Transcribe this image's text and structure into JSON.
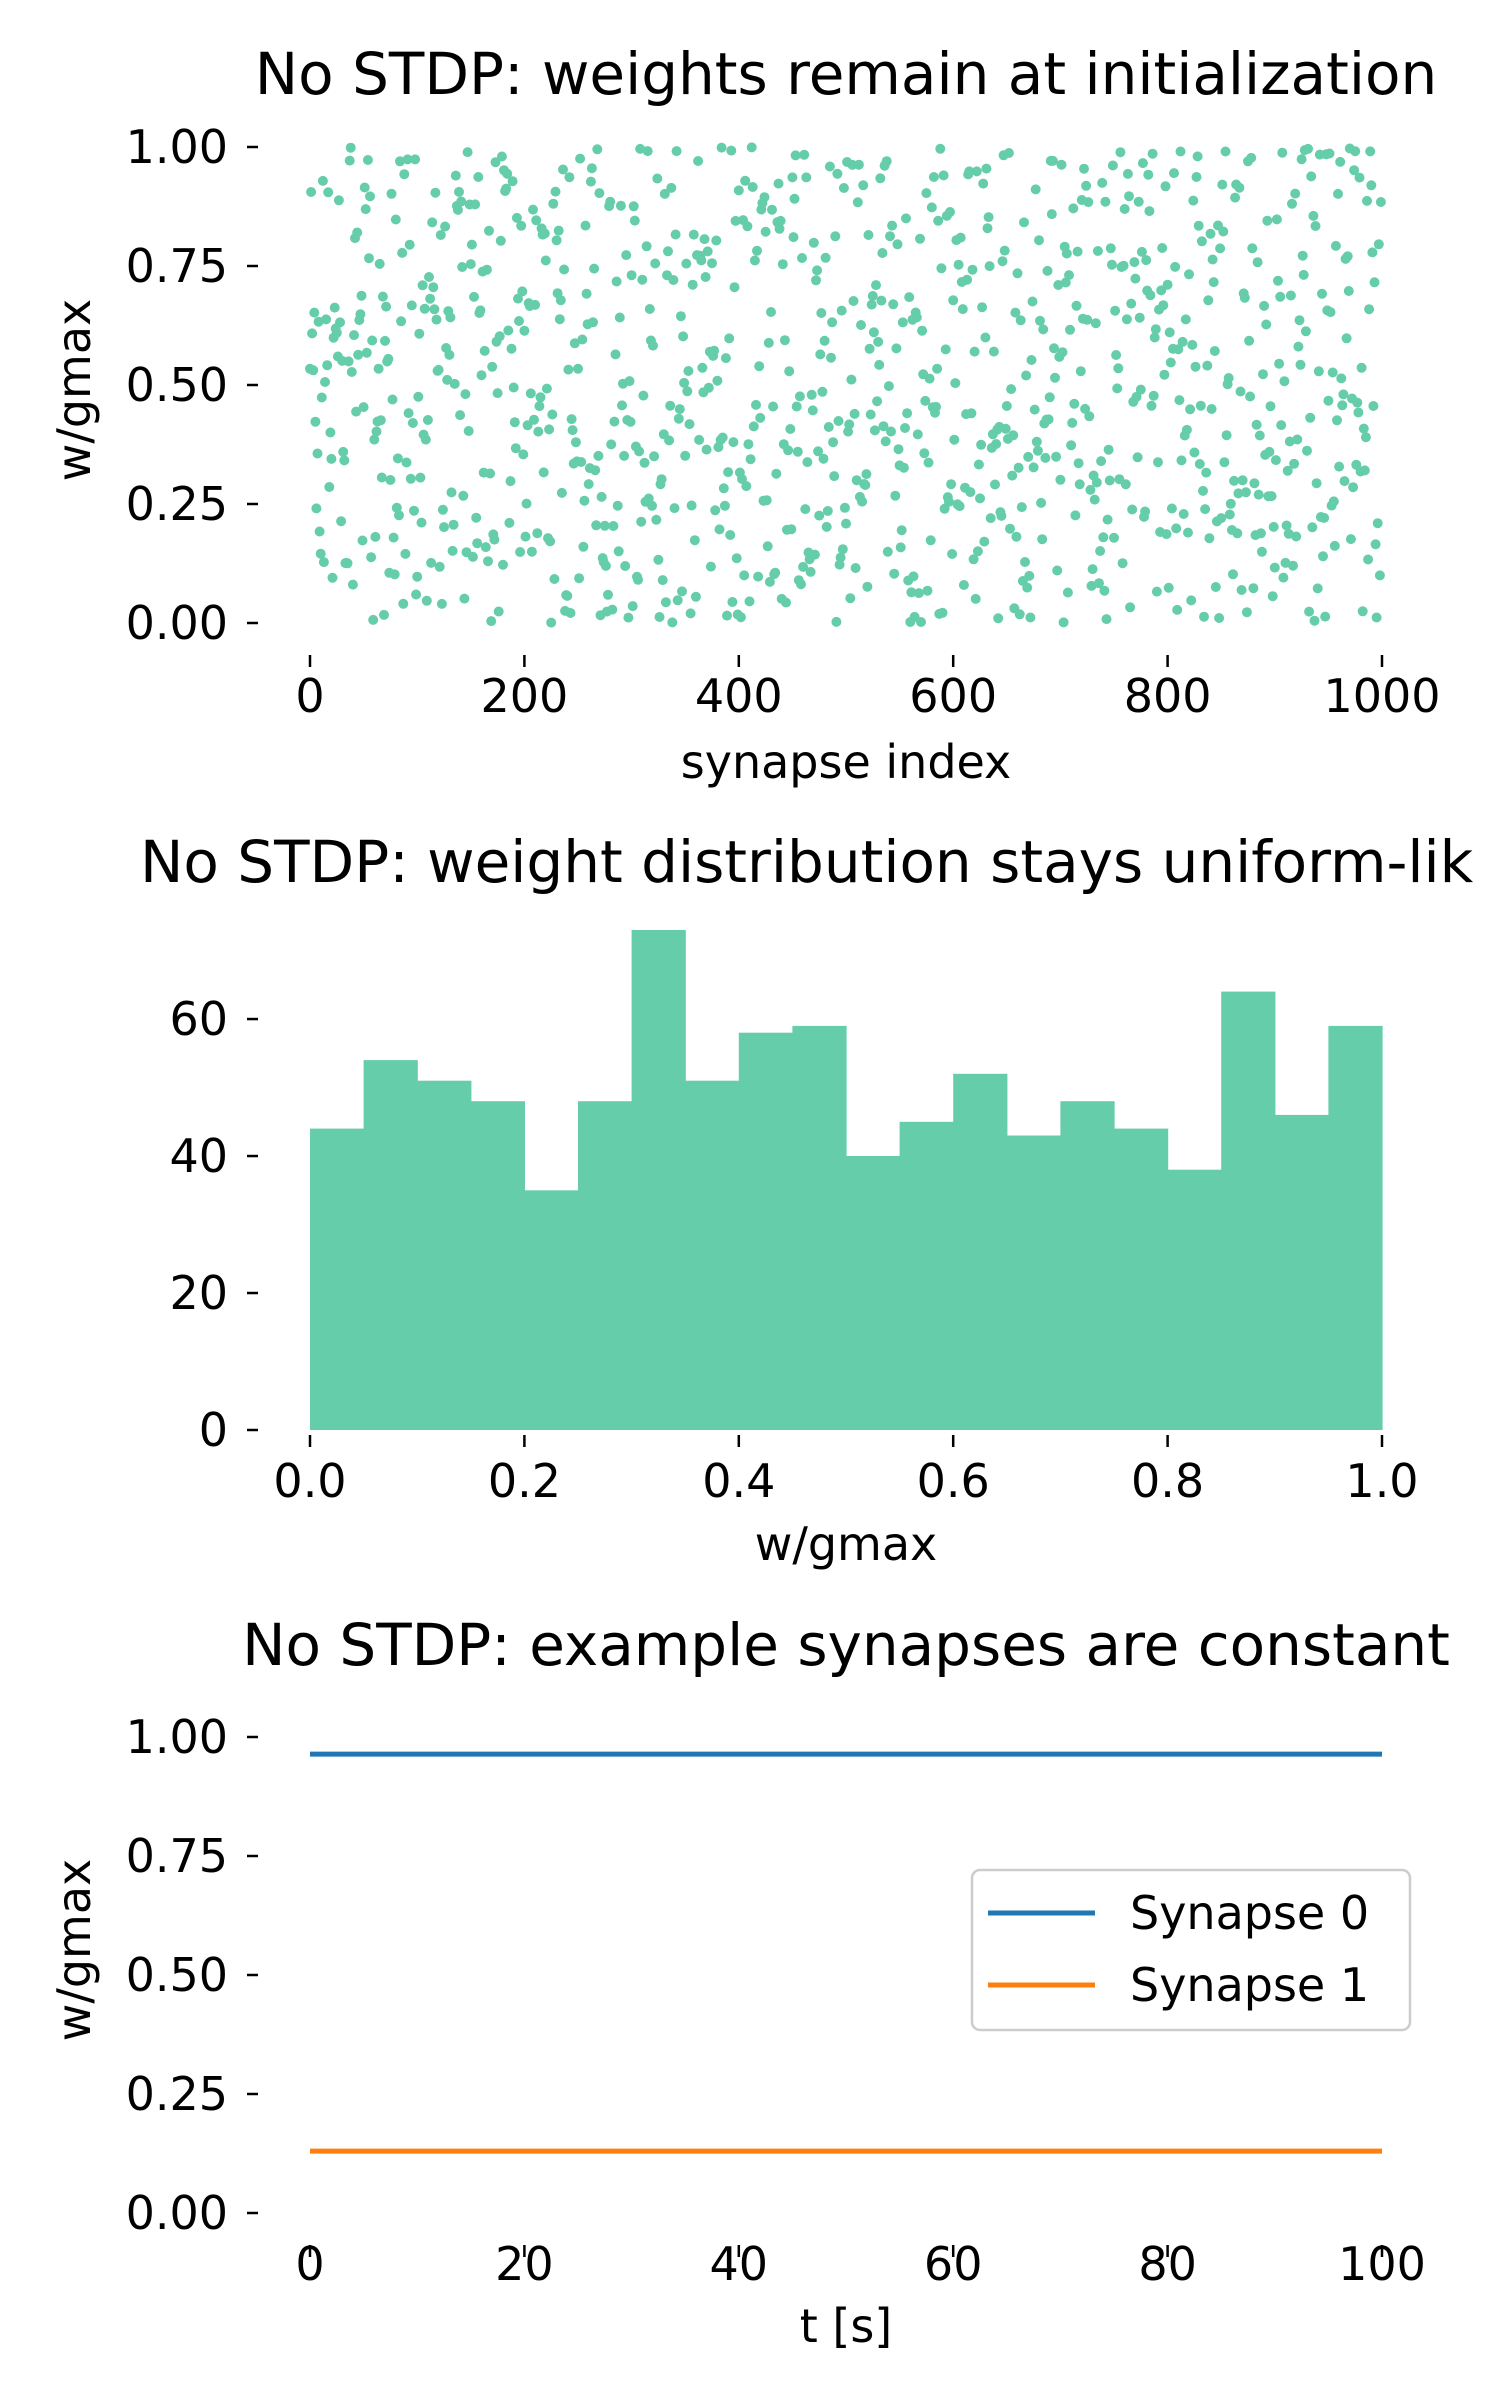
{
  "chart_data": [
    {
      "type": "scatter",
      "title": "No STDP: weights remain at initialization",
      "xlabel": "synapse index",
      "ylabel": "w/gmax",
      "xlim": [
        0,
        1000
      ],
      "ylim": [
        0,
        1
      ],
      "xticks": [
        "0",
        "200",
        "400",
        "600",
        "800",
        "1000"
      ],
      "yticks": [
        "0.00",
        "0.25",
        "0.50",
        "0.75",
        "1.00"
      ],
      "n_points": 1000,
      "distribution": "uniform(0,1)",
      "color": "#66cdaa"
    },
    {
      "type": "bar",
      "title": "No STDP: weight distribution stays uniform-lik",
      "xlabel": "w/gmax",
      "ylabel": "",
      "xlim": [
        0,
        1
      ],
      "ylim": [
        0,
        73
      ],
      "xticks": [
        "0.0",
        "0.2",
        "0.4",
        "0.6",
        "0.8",
        "1.0"
      ],
      "yticks": [
        "0",
        "20",
        "40",
        "60"
      ],
      "bin_edges": [
        0.0,
        0.05,
        0.1,
        0.15,
        0.2,
        0.25,
        0.3,
        0.35,
        0.4,
        0.45,
        0.5,
        0.55,
        0.6,
        0.65,
        0.7,
        0.75,
        0.8,
        0.85,
        0.9,
        0.95,
        1.0
      ],
      "values": [
        44,
        54,
        51,
        48,
        35,
        48,
        73,
        51,
        58,
        59,
        40,
        45,
        52,
        43,
        48,
        44,
        38,
        64,
        46,
        59
      ],
      "color": "#66cdaa"
    },
    {
      "type": "line",
      "title": "No STDP: example synapses are constant",
      "xlabel": "t [s]",
      "ylabel": "w/gmax",
      "xlim": [
        0,
        100
      ],
      "ylim": [
        0,
        1
      ],
      "xticks": [
        "0",
        "20",
        "40",
        "60",
        "80",
        "100"
      ],
      "yticks": [
        "0.00",
        "0.25",
        "0.50",
        "0.75",
        "1.00"
      ],
      "legend_position": "center-right",
      "series": [
        {
          "name": "Synapse 0",
          "color": "#1f77b4",
          "x": [
            0,
            100
          ],
          "values": [
            0.964,
            0.964
          ]
        },
        {
          "name": "Synapse 1",
          "color": "#ff7f0e",
          "x": [
            0,
            100
          ],
          "values": [
            0.13,
            0.13
          ]
        }
      ]
    }
  ]
}
